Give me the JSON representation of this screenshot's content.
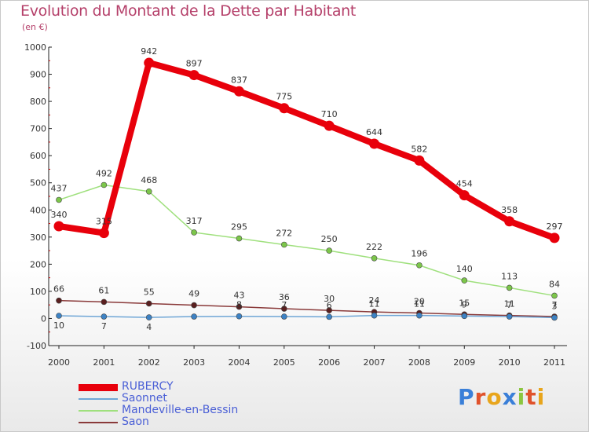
{
  "header": {
    "title": "Evolution du Montant de la Dette par Habitant",
    "subtitle": "(en €)"
  },
  "logo": {
    "text": "Proxiti",
    "colors": [
      "#3a7fd8",
      "#e0522b",
      "#e8a51c",
      "#3a7fd8",
      "#8cc63f",
      "#e0522b",
      "#e8a51c"
    ]
  },
  "chart_data": {
    "type": "line",
    "title": "Evolution du Montant de la Dette par Habitant",
    "subtitle": "(en €)",
    "xlabel": "",
    "ylabel": "",
    "ylim": [
      -100,
      1000
    ],
    "y_ticks": [
      "-100",
      "0",
      "100",
      "200",
      "300",
      "400",
      "500",
      "600",
      "700",
      "800",
      "900",
      "1000"
    ],
    "y_tick_values": [
      -100,
      0,
      100,
      200,
      300,
      400,
      500,
      600,
      700,
      800,
      900,
      1000
    ],
    "categories": [
      "2000",
      "2001",
      "2002",
      "2003",
      "2004",
      "2005",
      "2006",
      "2007",
      "2008",
      "2009",
      "2010",
      "2011"
    ],
    "grid": false,
    "legend_position": "bottom-left",
    "series": [
      {
        "name": "RUBERCY",
        "color": "#e8000b",
        "width": 8,
        "marker": "#e8000b",
        "values": [
          340,
          315,
          942,
          897,
          837,
          775,
          710,
          644,
          582,
          454,
          358,
          297
        ],
        "labels": [
          "340",
          "315",
          "942",
          "897",
          "837",
          "775",
          "710",
          "644",
          "582",
          "454",
          "358",
          "297"
        ]
      },
      {
        "name": "Saonnet",
        "color": "#6fa6d6",
        "width": 1.5,
        "marker": "#3d82c4",
        "values": [
          10,
          7,
          4,
          7,
          8,
          7,
          6,
          11,
          11,
          9,
          7,
          3
        ],
        "labels": [
          "10",
          "7",
          "4",
          "",
          "",
          "",
          "",
          "",
          "",
          "",
          "",
          ""
        ]
      },
      {
        "name": "Mandeville-en-Bessin",
        "color": "#9fe07d",
        "width": 1.5,
        "marker": "#7cc64a",
        "values": [
          437,
          492,
          468,
          317,
          295,
          272,
          250,
          222,
          196,
          140,
          113,
          84
        ],
        "labels": [
          "437",
          "492",
          "468",
          "317",
          "295",
          "272",
          "250",
          "222",
          "196",
          "140",
          "113",
          "84"
        ]
      },
      {
        "name": "Saon",
        "color": "#8a3a3a",
        "width": 1.5,
        "marker": "#5a1f1f",
        "values": [
          66,
          61,
          55,
          49,
          43,
          36,
          30,
          24,
          20,
          15,
          11,
          7
        ],
        "labels": [
          "66",
          "61",
          "55",
          "49",
          "43",
          "36",
          "30",
          "24",
          "20",
          "15",
          "11",
          "7"
        ]
      }
    ],
    "overlap_labels": [
      {
        "year": "2004",
        "text": "8"
      },
      {
        "year": "2005",
        "text": "7"
      },
      {
        "year": "2006",
        "text": "6"
      },
      {
        "year": "2007",
        "text": "11"
      },
      {
        "year": "2008",
        "text": "11"
      },
      {
        "year": "2009",
        "text": "9"
      },
      {
        "year": "2010",
        "text": "7"
      },
      {
        "year": "2011",
        "text": "3"
      }
    ]
  }
}
